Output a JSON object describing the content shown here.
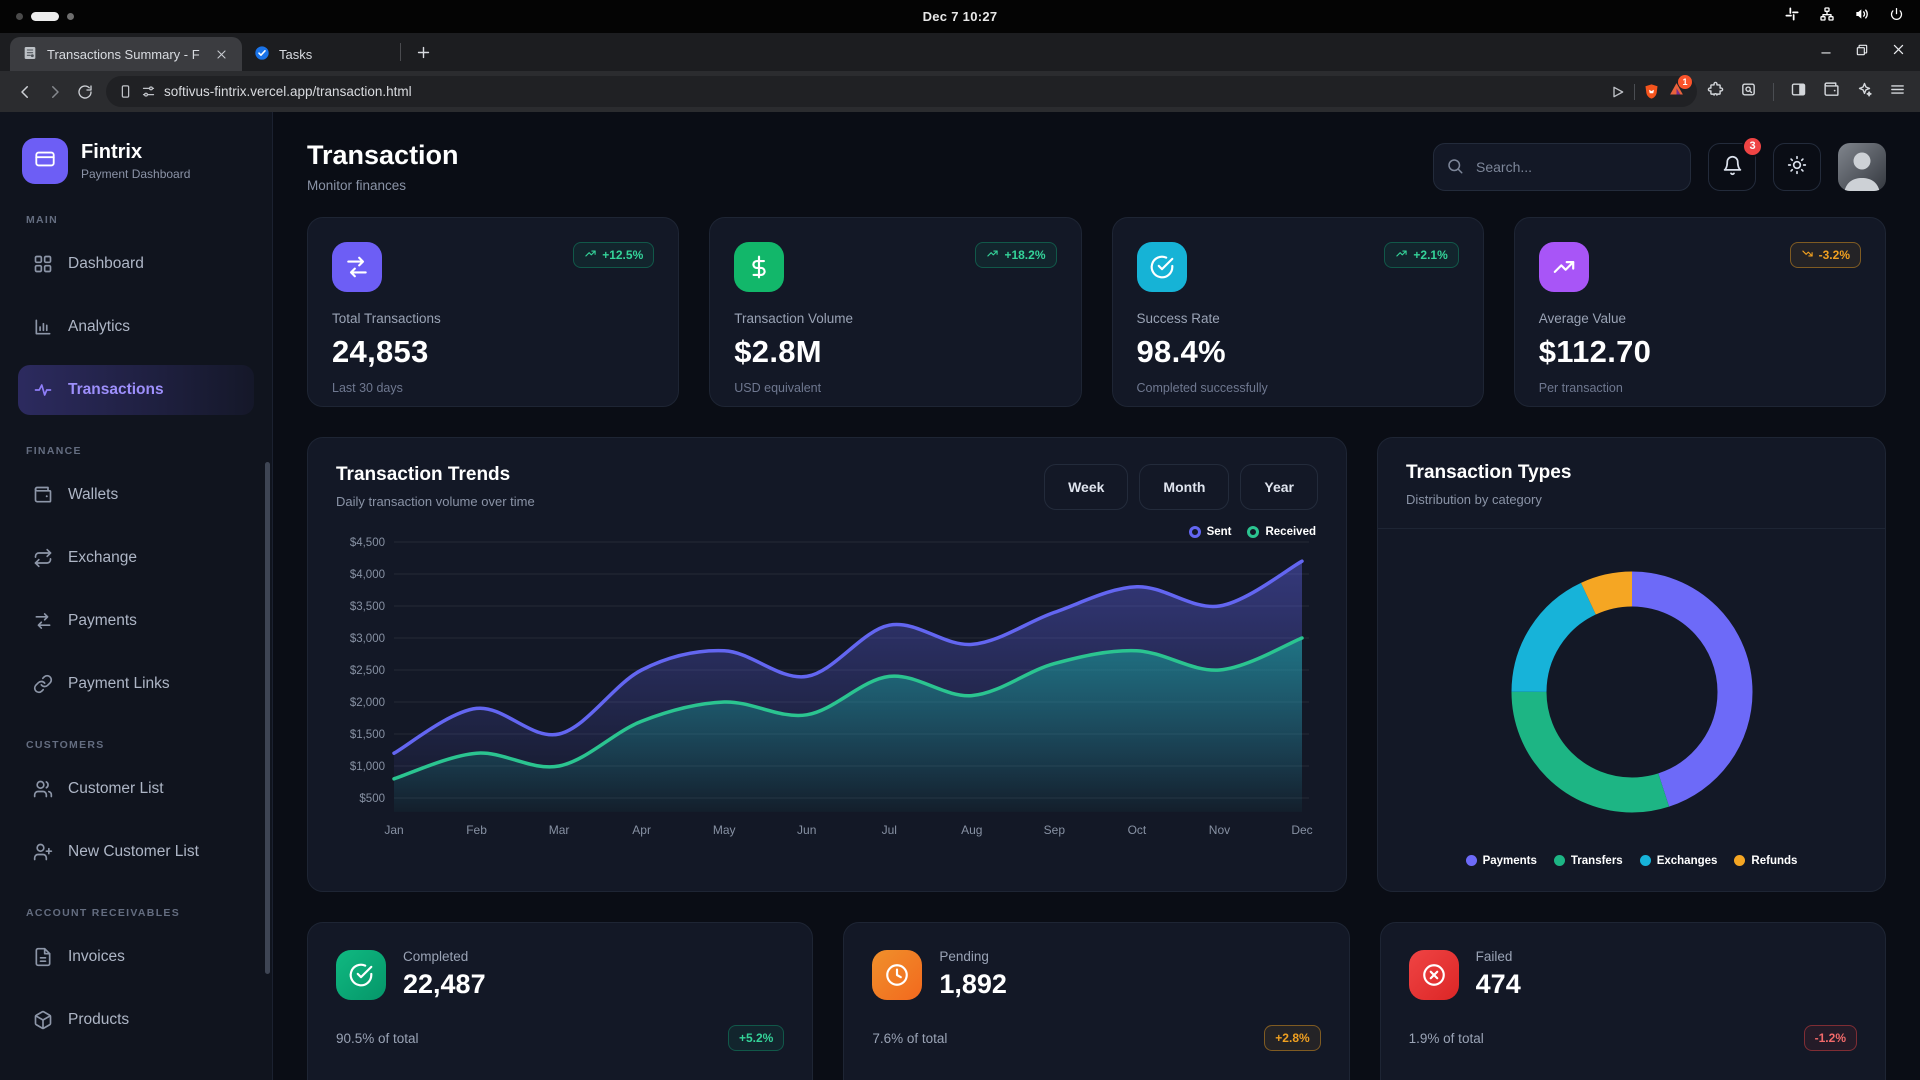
{
  "system_bar": {
    "clock": "Dec 7  10:27"
  },
  "browser": {
    "tabs": [
      {
        "title": "Transactions Summary - F",
        "favicon": "map-fav"
      },
      {
        "title": "Tasks",
        "favicon": "task-fav"
      }
    ],
    "url": "softivus-fintrix.vercel.app/transaction.html",
    "rewards_badge": "1"
  },
  "sidebar": {
    "brand": {
      "name": "Fintrix",
      "subtitle": "Payment Dashboard"
    },
    "sections": [
      {
        "label": "MAIN",
        "items": [
          {
            "label": "Dashboard",
            "icon": "grid"
          },
          {
            "label": "Analytics",
            "icon": "bar-chart"
          },
          {
            "label": "Transactions",
            "icon": "activity",
            "active": true
          }
        ]
      },
      {
        "label": "FINANCE",
        "items": [
          {
            "label": "Wallets",
            "icon": "wallet"
          },
          {
            "label": "Exchange",
            "icon": "repeat"
          },
          {
            "label": "Payments",
            "icon": "arrows-lr"
          },
          {
            "label": "Payment Links",
            "icon": "link"
          }
        ]
      },
      {
        "label": "CUSTOMERS",
        "items": [
          {
            "label": "Customer List",
            "icon": "users"
          },
          {
            "label": "New Customer List",
            "icon": "user-plus"
          }
        ]
      },
      {
        "label": "ACCOUNT RECEIVABLES",
        "items": [
          {
            "label": "Invoices",
            "icon": "file"
          },
          {
            "label": "Products",
            "icon": "package"
          }
        ]
      }
    ]
  },
  "header": {
    "title": "Transaction",
    "subtitle": "Monitor finances",
    "search_placeholder": "Search...",
    "notification_count": "3"
  },
  "stat_cards": [
    {
      "label": "Total Transactions",
      "value": "24,853",
      "sublabel": "Last 30 days",
      "badge": "+12.5%",
      "badge_style": "green",
      "trend": "up",
      "icon": "arrows-lr",
      "color": "#6d5ef5"
    },
    {
      "label": "Transaction Volume",
      "value": "$2.8M",
      "sublabel": "USD equivalent",
      "badge": "+18.2%",
      "badge_style": "green",
      "trend": "up",
      "icon": "dollar",
      "color": "#12b76a"
    },
    {
      "label": "Success Rate",
      "value": "98.4%",
      "sublabel": "Completed successfully",
      "badge": "+2.1%",
      "badge_style": "green",
      "trend": "up",
      "icon": "check-circle",
      "color": "#16b3d6"
    },
    {
      "label": "Average Value",
      "value": "$112.70",
      "sublabel": "Per transaction",
      "badge": "-3.2%",
      "badge_style": "amber",
      "trend": "down",
      "icon": "trending-up",
      "color": "#a855f7"
    }
  ],
  "trends": {
    "title": "Transaction Trends",
    "subtitle": "Daily transaction volume over time",
    "ranges": [
      "Week",
      "Month",
      "Year"
    ]
  },
  "types": {
    "title": "Transaction Types",
    "subtitle": "Distribution by category"
  },
  "chart_data": [
    {
      "type": "area",
      "title": "Transaction Trends",
      "x": [
        "Jan",
        "Feb",
        "Mar",
        "Apr",
        "May",
        "Jun",
        "Jul",
        "Aug",
        "Sep",
        "Oct",
        "Nov",
        "Dec"
      ],
      "ylim": [
        500,
        4500
      ],
      "ytick_step": 500,
      "ytick_format": "$#,###",
      "grid": true,
      "legend_position": "top-right",
      "series": [
        {
          "name": "Sent",
          "color": "#6366f1",
          "values": [
            1200,
            1900,
            1500,
            2500,
            2800,
            2400,
            3200,
            2900,
            3400,
            3800,
            3500,
            4200
          ]
        },
        {
          "name": "Received",
          "color": "#2bc490",
          "values": [
            800,
            1200,
            1000,
            1700,
            2000,
            1800,
            2400,
            2100,
            2600,
            2800,
            2500,
            3000
          ]
        }
      ]
    },
    {
      "type": "pie",
      "donut": true,
      "title": "Transaction Types",
      "labels": [
        "Payments",
        "Transfers",
        "Exchanges",
        "Refunds"
      ],
      "values": [
        45,
        30,
        18,
        7
      ],
      "colors": [
        "#6d6af8",
        "#1db584",
        "#17b3d9",
        "#f5a623"
      ],
      "legend_position": "bottom"
    }
  ],
  "summary_cards": [
    {
      "label": "Completed",
      "value": "22,487",
      "sublabel": "90.5% of total",
      "badge": "+5.2%",
      "badge_style": "green",
      "icon": "check-circle",
      "color_from": "#10b981",
      "color_to": "#059669"
    },
    {
      "label": "Pending",
      "value": "1,892",
      "sublabel": "7.6% of total",
      "badge": "+2.8%",
      "badge_style": "amber",
      "icon": "clock",
      "color_from": "#f0902b",
      "color_to": "#f2691e"
    },
    {
      "label": "Failed",
      "value": "474",
      "sublabel": "1.9% of total",
      "badge": "-1.2%",
      "badge_style": "red",
      "icon": "x-circle",
      "color_from": "#ef4444",
      "color_to": "#dc2626"
    }
  ]
}
